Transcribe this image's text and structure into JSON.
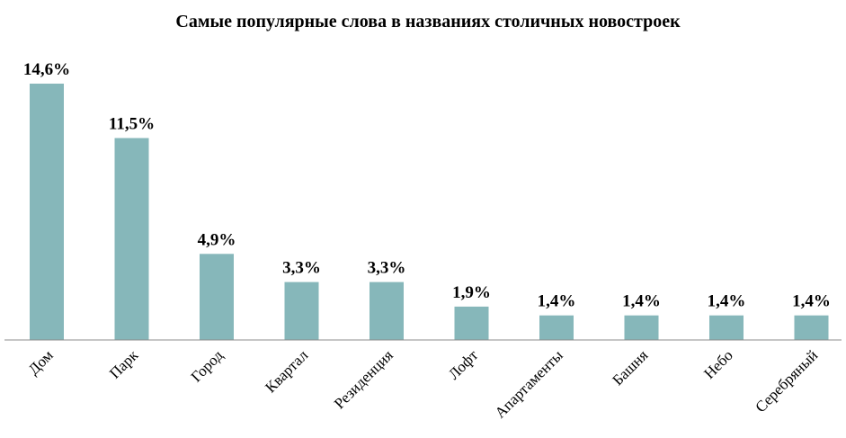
{
  "chart_data": {
    "type": "bar",
    "title": "Самые популярные слова в названиях столичных новостроек",
    "categories": [
      "Дом",
      "Парк",
      "Город",
      "Квартал",
      "Резиденция",
      "Лофт",
      "Апартаменты",
      "Башня",
      "Небо",
      "Серебряный"
    ],
    "values": [
      14.6,
      11.5,
      4.9,
      3.3,
      3.3,
      1.9,
      1.4,
      1.4,
      1.4,
      1.4
    ],
    "value_labels": [
      "14,6%",
      "11,5%",
      "4,9%",
      "3,3%",
      "3,3%",
      "1,9%",
      "1,4%",
      "1,4%",
      "1,4%",
      "1,4%"
    ],
    "xlabel": "",
    "ylabel": "",
    "ylim": [
      0,
      14.6
    ],
    "grid": false,
    "legend": "none",
    "bar_color": "#86b7ba"
  }
}
